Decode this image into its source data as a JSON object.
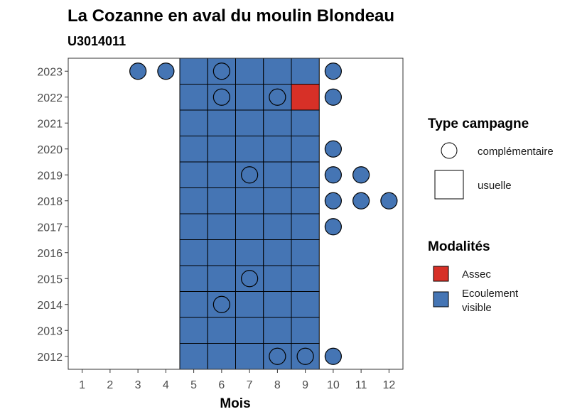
{
  "chart_data": {
    "type": "heatmap",
    "title": "La Cozanne en aval du moulin Blondeau",
    "subtitle": "U3014011",
    "xlabel": "Mois",
    "ylabel": "",
    "x_ticks": [
      1,
      2,
      3,
      4,
      5,
      6,
      7,
      8,
      9,
      10,
      11,
      12
    ],
    "y_ticks": [
      2012,
      2013,
      2014,
      2015,
      2016,
      2017,
      2018,
      2019,
      2020,
      2021,
      2022,
      2023
    ],
    "xlim": [
      0.5,
      12.5
    ],
    "ylim": [
      2011.5,
      2023.5
    ],
    "grid": false,
    "colors": {
      "Ecoulement visible": "#4575b4",
      "Assec": "#d73027"
    },
    "legend": {
      "placement": "right",
      "shape_title": "Type campagne",
      "shape_entries": [
        {
          "label": "complémentaire",
          "shape": "circle"
        },
        {
          "label": "usuelle",
          "shape": "square"
        }
      ],
      "color_title": "Modalités",
      "color_entries": [
        {
          "label": "Assec",
          "color": "#d73027"
        },
        {
          "label_lines": [
            "Ecoulement",
            "visible"
          ],
          "color": "#4575b4"
        }
      ]
    },
    "observations": [
      {
        "year": 2023,
        "month": 3,
        "type": "complémentaire",
        "modalite": "Ecoulement visible"
      },
      {
        "year": 2023,
        "month": 4,
        "type": "complémentaire",
        "modalite": "Ecoulement visible"
      },
      {
        "year": 2023,
        "month": 5,
        "type": "usuelle",
        "modalite": "Ecoulement visible"
      },
      {
        "year": 2023,
        "month": 6,
        "type": "usuelle",
        "modalite": "Ecoulement visible"
      },
      {
        "year": 2023,
        "month": 6,
        "type": "complémentaire",
        "modalite": "Ecoulement visible"
      },
      {
        "year": 2023,
        "month": 7,
        "type": "usuelle",
        "modalite": "Ecoulement visible"
      },
      {
        "year": 2023,
        "month": 8,
        "type": "usuelle",
        "modalite": "Ecoulement visible"
      },
      {
        "year": 2023,
        "month": 9,
        "type": "usuelle",
        "modalite": "Ecoulement visible"
      },
      {
        "year": 2023,
        "month": 10,
        "type": "complémentaire",
        "modalite": "Ecoulement visible"
      },
      {
        "year": 2022,
        "month": 5,
        "type": "usuelle",
        "modalite": "Ecoulement visible"
      },
      {
        "year": 2022,
        "month": 6,
        "type": "usuelle",
        "modalite": "Ecoulement visible"
      },
      {
        "year": 2022,
        "month": 6,
        "type": "complémentaire",
        "modalite": "Ecoulement visible"
      },
      {
        "year": 2022,
        "month": 7,
        "type": "usuelle",
        "modalite": "Ecoulement visible"
      },
      {
        "year": 2022,
        "month": 8,
        "type": "usuelle",
        "modalite": "Ecoulement visible"
      },
      {
        "year": 2022,
        "month": 8,
        "type": "complémentaire",
        "modalite": "Ecoulement visible"
      },
      {
        "year": 2022,
        "month": 9,
        "type": "usuelle",
        "modalite": "Assec"
      },
      {
        "year": 2022,
        "month": 10,
        "type": "complémentaire",
        "modalite": "Ecoulement visible"
      },
      {
        "year": 2021,
        "month": 5,
        "type": "usuelle",
        "modalite": "Ecoulement visible"
      },
      {
        "year": 2021,
        "month": 6,
        "type": "usuelle",
        "modalite": "Ecoulement visible"
      },
      {
        "year": 2021,
        "month": 7,
        "type": "usuelle",
        "modalite": "Ecoulement visible"
      },
      {
        "year": 2021,
        "month": 8,
        "type": "usuelle",
        "modalite": "Ecoulement visible"
      },
      {
        "year": 2021,
        "month": 9,
        "type": "usuelle",
        "modalite": "Ecoulement visible"
      },
      {
        "year": 2020,
        "month": 5,
        "type": "usuelle",
        "modalite": "Ecoulement visible"
      },
      {
        "year": 2020,
        "month": 6,
        "type": "usuelle",
        "modalite": "Ecoulement visible"
      },
      {
        "year": 2020,
        "month": 7,
        "type": "usuelle",
        "modalite": "Ecoulement visible"
      },
      {
        "year": 2020,
        "month": 8,
        "type": "usuelle",
        "modalite": "Ecoulement visible"
      },
      {
        "year": 2020,
        "month": 9,
        "type": "usuelle",
        "modalite": "Ecoulement visible"
      },
      {
        "year": 2020,
        "month": 10,
        "type": "complémentaire",
        "modalite": "Ecoulement visible"
      },
      {
        "year": 2019,
        "month": 5,
        "type": "usuelle",
        "modalite": "Ecoulement visible"
      },
      {
        "year": 2019,
        "month": 6,
        "type": "usuelle",
        "modalite": "Ecoulement visible"
      },
      {
        "year": 2019,
        "month": 7,
        "type": "usuelle",
        "modalite": "Ecoulement visible"
      },
      {
        "year": 2019,
        "month": 7,
        "type": "complémentaire",
        "modalite": "Ecoulement visible"
      },
      {
        "year": 2019,
        "month": 8,
        "type": "usuelle",
        "modalite": "Ecoulement visible"
      },
      {
        "year": 2019,
        "month": 9,
        "type": "usuelle",
        "modalite": "Ecoulement visible"
      },
      {
        "year": 2019,
        "month": 10,
        "type": "complémentaire",
        "modalite": "Ecoulement visible"
      },
      {
        "year": 2019,
        "month": 11,
        "type": "complémentaire",
        "modalite": "Ecoulement visible"
      },
      {
        "year": 2018,
        "month": 5,
        "type": "usuelle",
        "modalite": "Ecoulement visible"
      },
      {
        "year": 2018,
        "month": 6,
        "type": "usuelle",
        "modalite": "Ecoulement visible"
      },
      {
        "year": 2018,
        "month": 7,
        "type": "usuelle",
        "modalite": "Ecoulement visible"
      },
      {
        "year": 2018,
        "month": 8,
        "type": "usuelle",
        "modalite": "Ecoulement visible"
      },
      {
        "year": 2018,
        "month": 9,
        "type": "usuelle",
        "modalite": "Ecoulement visible"
      },
      {
        "year": 2018,
        "month": 10,
        "type": "complémentaire",
        "modalite": "Ecoulement visible"
      },
      {
        "year": 2018,
        "month": 11,
        "type": "complémentaire",
        "modalite": "Ecoulement visible"
      },
      {
        "year": 2018,
        "month": 12,
        "type": "complémentaire",
        "modalite": "Ecoulement visible"
      },
      {
        "year": 2017,
        "month": 5,
        "type": "usuelle",
        "modalite": "Ecoulement visible"
      },
      {
        "year": 2017,
        "month": 6,
        "type": "usuelle",
        "modalite": "Ecoulement visible"
      },
      {
        "year": 2017,
        "month": 7,
        "type": "usuelle",
        "modalite": "Ecoulement visible"
      },
      {
        "year": 2017,
        "month": 8,
        "type": "usuelle",
        "modalite": "Ecoulement visible"
      },
      {
        "year": 2017,
        "month": 9,
        "type": "usuelle",
        "modalite": "Ecoulement visible"
      },
      {
        "year": 2017,
        "month": 10,
        "type": "complémentaire",
        "modalite": "Ecoulement visible"
      },
      {
        "year": 2016,
        "month": 5,
        "type": "usuelle",
        "modalite": "Ecoulement visible"
      },
      {
        "year": 2016,
        "month": 6,
        "type": "usuelle",
        "modalite": "Ecoulement visible"
      },
      {
        "year": 2016,
        "month": 7,
        "type": "usuelle",
        "modalite": "Ecoulement visible"
      },
      {
        "year": 2016,
        "month": 8,
        "type": "usuelle",
        "modalite": "Ecoulement visible"
      },
      {
        "year": 2016,
        "month": 9,
        "type": "usuelle",
        "modalite": "Ecoulement visible"
      },
      {
        "year": 2015,
        "month": 5,
        "type": "usuelle",
        "modalite": "Ecoulement visible"
      },
      {
        "year": 2015,
        "month": 6,
        "type": "usuelle",
        "modalite": "Ecoulement visible"
      },
      {
        "year": 2015,
        "month": 7,
        "type": "usuelle",
        "modalite": "Ecoulement visible"
      },
      {
        "year": 2015,
        "month": 7,
        "type": "complémentaire",
        "modalite": "Ecoulement visible"
      },
      {
        "year": 2015,
        "month": 8,
        "type": "usuelle",
        "modalite": "Ecoulement visible"
      },
      {
        "year": 2015,
        "month": 9,
        "type": "usuelle",
        "modalite": "Ecoulement visible"
      },
      {
        "year": 2014,
        "month": 5,
        "type": "usuelle",
        "modalite": "Ecoulement visible"
      },
      {
        "year": 2014,
        "month": 6,
        "type": "usuelle",
        "modalite": "Ecoulement visible"
      },
      {
        "year": 2014,
        "month": 6,
        "type": "complémentaire",
        "modalite": "Ecoulement visible"
      },
      {
        "year": 2014,
        "month": 7,
        "type": "usuelle",
        "modalite": "Ecoulement visible"
      },
      {
        "year": 2014,
        "month": 8,
        "type": "usuelle",
        "modalite": "Ecoulement visible"
      },
      {
        "year": 2014,
        "month": 9,
        "type": "usuelle",
        "modalite": "Ecoulement visible"
      },
      {
        "year": 2013,
        "month": 5,
        "type": "usuelle",
        "modalite": "Ecoulement visible"
      },
      {
        "year": 2013,
        "month": 6,
        "type": "usuelle",
        "modalite": "Ecoulement visible"
      },
      {
        "year": 2013,
        "month": 7,
        "type": "usuelle",
        "modalite": "Ecoulement visible"
      },
      {
        "year": 2013,
        "month": 8,
        "type": "usuelle",
        "modalite": "Ecoulement visible"
      },
      {
        "year": 2013,
        "month": 9,
        "type": "usuelle",
        "modalite": "Ecoulement visible"
      },
      {
        "year": 2012,
        "month": 5,
        "type": "usuelle",
        "modalite": "Ecoulement visible"
      },
      {
        "year": 2012,
        "month": 6,
        "type": "usuelle",
        "modalite": "Ecoulement visible"
      },
      {
        "year": 2012,
        "month": 7,
        "type": "usuelle",
        "modalite": "Ecoulement visible"
      },
      {
        "year": 2012,
        "month": 8,
        "type": "usuelle",
        "modalite": "Ecoulement visible"
      },
      {
        "year": 2012,
        "month": 8,
        "type": "complémentaire",
        "modalite": "Ecoulement visible"
      },
      {
        "year": 2012,
        "month": 9,
        "type": "usuelle",
        "modalite": "Ecoulement visible"
      },
      {
        "year": 2012,
        "month": 9,
        "type": "complémentaire",
        "modalite": "Ecoulement visible"
      },
      {
        "year": 2012,
        "month": 10,
        "type": "complémentaire",
        "modalite": "Ecoulement visible"
      }
    ]
  }
}
